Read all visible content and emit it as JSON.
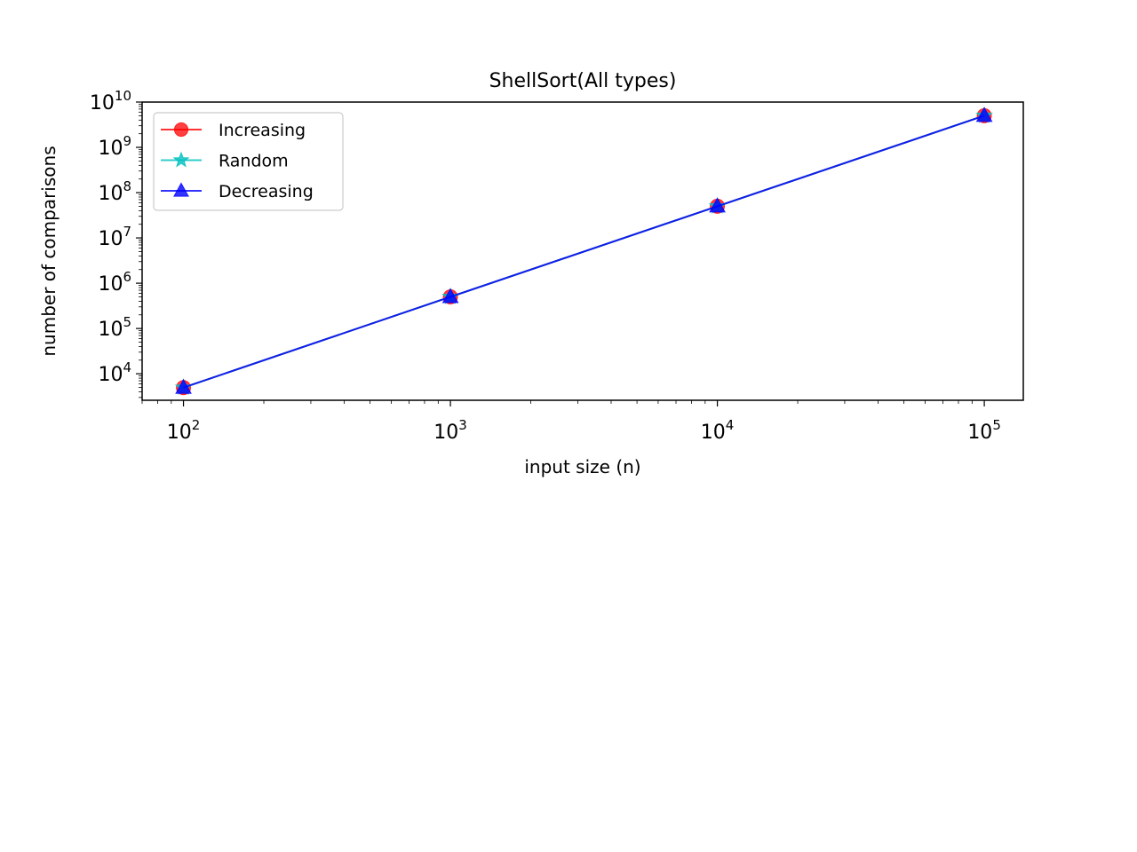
{
  "chart_data": {
    "type": "line",
    "title": "ShellSort(All types)",
    "xlabel": "input size (n)",
    "ylabel": "number of comparisons",
    "xscale": "log",
    "yscale": "log",
    "xlim": [
      70,
      140000
    ],
    "ylim": [
      2600,
      10000000000
    ],
    "grid": false,
    "legend_position": "top-left",
    "x_ticks": [
      {
        "value": 100,
        "base": "10",
        "exp": "2"
      },
      {
        "value": 1000,
        "base": "10",
        "exp": "3"
      },
      {
        "value": 10000,
        "base": "10",
        "exp": "4"
      },
      {
        "value": 100000,
        "base": "10",
        "exp": "5"
      }
    ],
    "y_ticks": [
      {
        "value": 10000,
        "base": "10",
        "exp": "4"
      },
      {
        "value": 100000,
        "base": "10",
        "exp": "5"
      },
      {
        "value": 1000000,
        "base": "10",
        "exp": "6"
      },
      {
        "value": 10000000,
        "base": "10",
        "exp": "7"
      },
      {
        "value": 100000000,
        "base": "10",
        "exp": "8"
      },
      {
        "value": 1000000000,
        "base": "10",
        "exp": "9"
      },
      {
        "value": 10000000000,
        "base": "10",
        "exp": "10"
      }
    ],
    "x": [
      100,
      1000,
      10000,
      100000
    ],
    "series": [
      {
        "name": "Increasing",
        "color": "#ff0000",
        "marker": "circle",
        "values": [
          4950,
          499500,
          49995000,
          4999950000
        ]
      },
      {
        "name": "Random",
        "color": "#00bfbf",
        "marker": "star",
        "values": [
          4950,
          499500,
          49995000,
          4999950000
        ]
      },
      {
        "name": "Decreasing",
        "color": "#0000ff",
        "marker": "triangle",
        "values": [
          4950,
          499500,
          49995000,
          4999950000
        ]
      }
    ]
  }
}
